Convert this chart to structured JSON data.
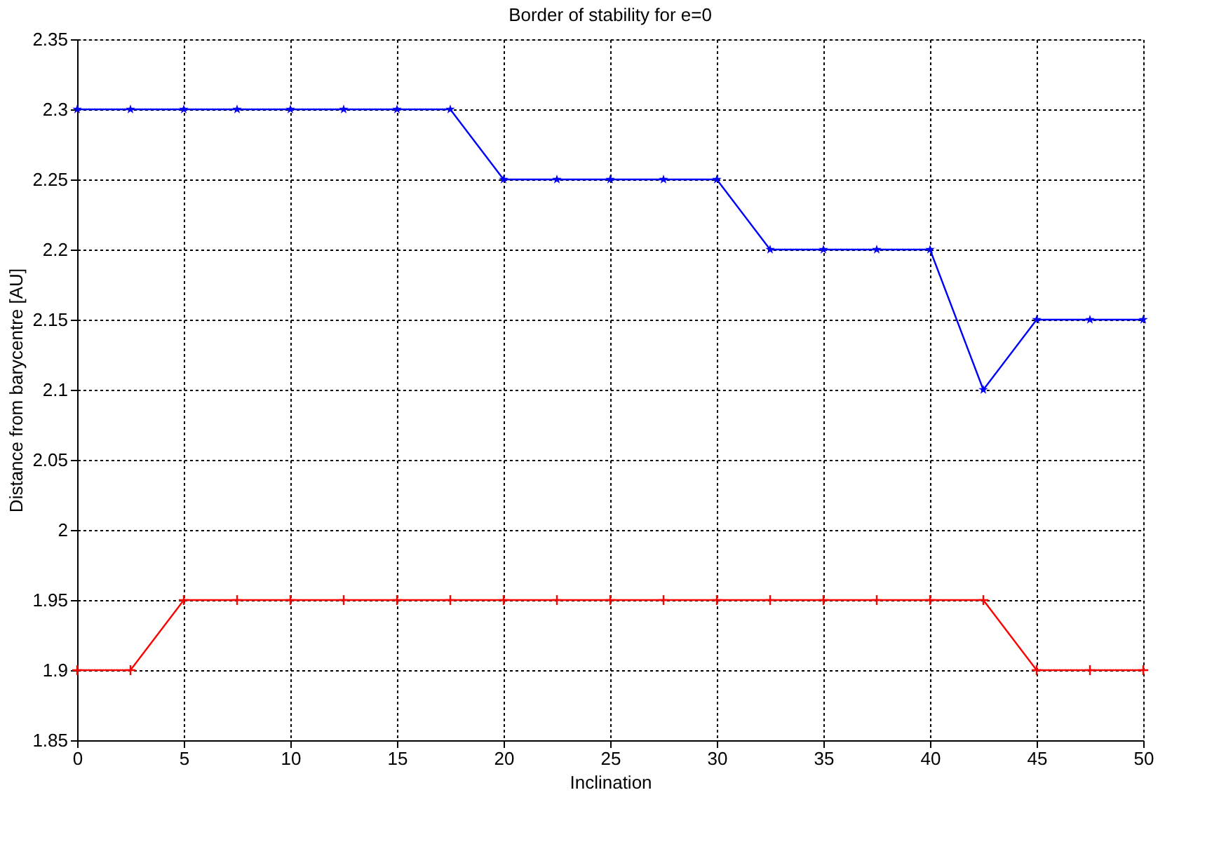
{
  "chart_data": {
    "type": "line",
    "title": "Border of stability for e=0",
    "xlabel": "Inclination",
    "ylabel": "Distance from barycentre [AU]",
    "x": [
      0,
      2.5,
      5,
      7.5,
      10,
      12.5,
      15,
      17.5,
      20,
      22.5,
      25,
      27.5,
      30,
      32.5,
      35,
      37.5,
      40,
      42.5,
      45,
      47.5,
      50
    ],
    "series": [
      {
        "color": "#0000ff",
        "marker": "star",
        "values": [
          2.3,
          2.3,
          2.3,
          2.3,
          2.3,
          2.3,
          2.3,
          2.3,
          2.25,
          2.25,
          2.25,
          2.25,
          2.25,
          2.2,
          2.2,
          2.2,
          2.2,
          2.1,
          2.15,
          2.15,
          2.15
        ]
      },
      {
        "color": "#ff0000",
        "marker": "cross",
        "values": [
          1.9,
          1.9,
          1.95,
          1.95,
          1.95,
          1.95,
          1.95,
          1.95,
          1.95,
          1.95,
          1.95,
          1.95,
          1.95,
          1.95,
          1.95,
          1.95,
          1.95,
          1.95,
          1.9,
          1.9,
          1.9
        ]
      }
    ],
    "xlim": [
      0,
      50
    ],
    "xticks": [
      0,
      5,
      10,
      15,
      20,
      25,
      30,
      35,
      40,
      45,
      50
    ],
    "ylim": [
      1.85,
      2.35
    ],
    "yticks": [
      1.85,
      1.9,
      1.95,
      2,
      2.05,
      2.1,
      2.15,
      2.2,
      2.25,
      2.3,
      2.35
    ],
    "grid": true,
    "line_style": "solid"
  }
}
